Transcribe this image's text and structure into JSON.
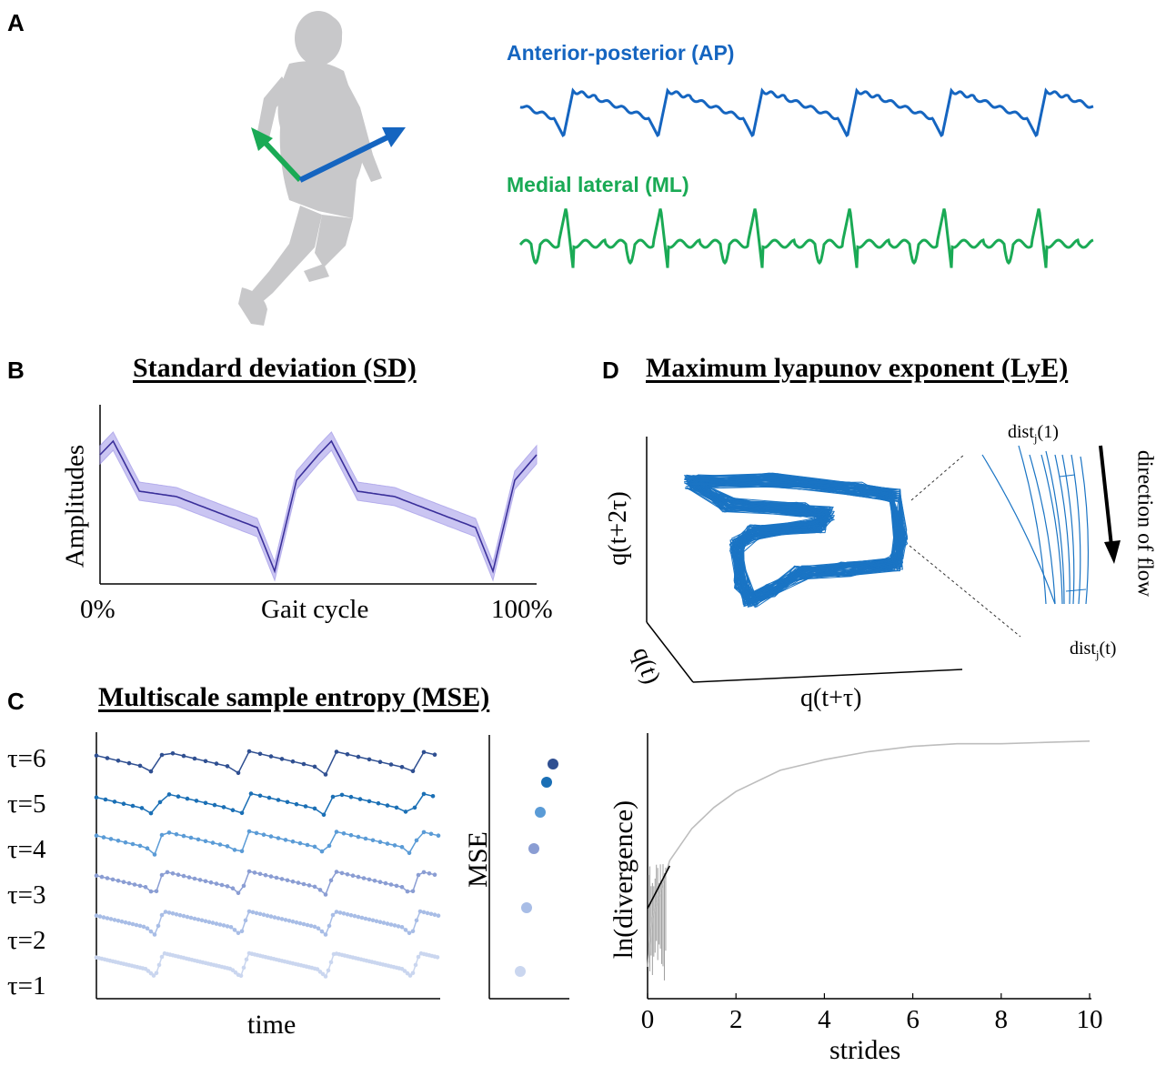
{
  "panels": {
    "A": {
      "letter": "A",
      "ap_label": "Anterior-posterior (AP)",
      "ml_label": "Medial lateral (ML)",
      "colors": {
        "ap": "#1565c0",
        "ml": "#1aaa55",
        "silhouette": "#c8c8ca"
      }
    },
    "B": {
      "letter": "B",
      "title": "Standard deviation (SD)",
      "ylabel": "Amplitudes",
      "x_start": "0%",
      "x_mid": "Gait cycle",
      "x_end": "100%",
      "colors": {
        "line": "#3a2f9a",
        "band": "#b9b2ee"
      }
    },
    "C": {
      "letter": "C",
      "title": "Multiscale sample entropy (MSE)",
      "xlabel": "time",
      "mse_label": "MSE",
      "scales": [
        "τ=6",
        "τ=5",
        "τ=4",
        "τ=3",
        "τ=2",
        "τ=1"
      ],
      "scale_colors": [
        "#2f4f91",
        "#1a6fb5",
        "#5a9bd6",
        "#8a9dd3",
        "#a8bde6",
        "#cad6ef"
      ]
    },
    "D": {
      "letter": "D",
      "title": "Maximum lyapunov exponent (LyE)",
      "axis_z": "q(t+2τ)",
      "axis_x": "q(t+τ)",
      "axis_y": "q(t)",
      "dist_start": "dist",
      "dist_start_sub": "j",
      "dist_start_arg": "(1)",
      "dist_end": "dist",
      "dist_end_sub": "j",
      "dist_end_arg": "(t)",
      "flow_label": "direction of flow",
      "colors": {
        "attractor": "#1a74c4"
      }
    },
    "D2": {
      "ylabel": "ln(divergence)",
      "xlabel": "strides"
    }
  },
  "chart_data": {
    "type": "line",
    "title": "",
    "xlabel": "strides",
    "ylabel": "ln(divergence)",
    "xlim": [
      0,
      10
    ],
    "x_ticks": [
      "0",
      "2",
      "4",
      "6",
      "8",
      "10"
    ],
    "series": [
      {
        "x": [
          0,
          0.1,
          0.25,
          0.5,
          1,
          1.5,
          2,
          3,
          4,
          5,
          6,
          7,
          8,
          9,
          10
        ],
        "y": [
          0.12,
          0.3,
          0.38,
          0.52,
          0.64,
          0.72,
          0.78,
          0.86,
          0.9,
          0.93,
          0.95,
          0.96,
          0.96,
          0.965,
          0.97
        ]
      }
    ],
    "fit_line": {
      "x": [
        0,
        0.5
      ],
      "y": [
        0.34,
        0.5
      ]
    }
  }
}
